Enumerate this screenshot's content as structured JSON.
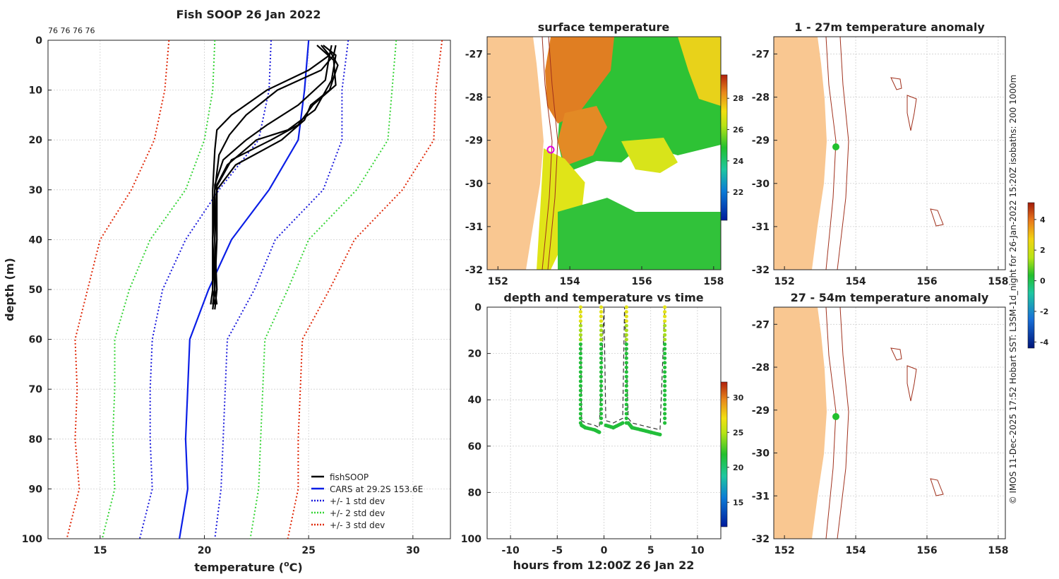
{
  "colors": {
    "land": "#f9c791",
    "fishsoop": "#000000",
    "cars": "#0a1ee6",
    "std1": "#1a1adc",
    "std2": "#35d435",
    "std3": "#e02a0a",
    "isobath": "#a0301c"
  },
  "profile": {
    "title": "Fish SOOP 26 Jan 2022",
    "top_note": "76 76 76 76",
    "xlabel": "temperature (",
    "xlabel_unit": "o",
    "xlabel_end": "C)",
    "ylabel": "depth (m)",
    "x_ticks": [
      "15",
      "20",
      "25",
      "30"
    ],
    "y_ticks": [
      "0",
      "10",
      "20",
      "30",
      "40",
      "50",
      "60",
      "70",
      "80",
      "90",
      "100"
    ],
    "legend": [
      "fishSOOP",
      "CARS at 29.2S 153.6E",
      "+/- 1 std dev",
      "+/- 2 std dev",
      "+/- 3 std dev"
    ]
  },
  "sst_map": {
    "title": "surface temperature",
    "colorbar_ticks": [
      "22",
      "24",
      "26",
      "28"
    ]
  },
  "anom1": {
    "title": "1 - 27m temperature anomaly"
  },
  "anom2": {
    "title": "27 - 54m temperature anomaly"
  },
  "anom_colorbar_ticks": [
    "-4",
    "-2",
    "0",
    "2",
    "4"
  ],
  "map_x_ticks": [
    "152",
    "154",
    "156",
    "158"
  ],
  "map_y_ticks": [
    "-27",
    "-28",
    "-29",
    "-30",
    "-31",
    "-32"
  ],
  "timeplot": {
    "title": "depth and temperature vs time",
    "xlabel": "hours from 12:00Z 26 Jan 22",
    "x_ticks": [
      "-10",
      "-5",
      "0",
      "5",
      "10"
    ],
    "y_ticks": [
      "0",
      "20",
      "40",
      "60",
      "80",
      "100"
    ],
    "colorbar_ticks": [
      "15",
      "20",
      "25",
      "30"
    ]
  },
  "credit": "© IMOS 11-Dec-2025 17:52 Hobart SST: L3SM-1d_night for 26-Jan-2022 15:20Z isobaths: 200  1000m",
  "chart_data": {
    "type": "line",
    "title": "Fish SOOP 26 Jan 2022",
    "xlabel": "temperature (oC)",
    "ylabel": "depth (m)",
    "xlim": [
      12.5,
      31.8
    ],
    "ylim": [
      100,
      0
    ],
    "depths": [
      0,
      10,
      20,
      30,
      40,
      50,
      60,
      70,
      80,
      90,
      100
    ],
    "series": [
      {
        "name": "CARS at 29.2S 153.6E",
        "values": [
          25.0,
          24.8,
          24.5,
          23.1,
          21.3,
          20.2,
          19.3,
          19.2,
          19.1,
          19.2,
          18.8
        ]
      },
      {
        "name": "+/- 1 std dev (low)",
        "values": [
          23.2,
          23.1,
          22.6,
          20.7,
          19.1,
          18.0,
          17.5,
          17.4,
          17.4,
          17.5,
          16.9
        ]
      },
      {
        "name": "+/- 1 std dev (high)",
        "values": [
          26.9,
          26.6,
          26.6,
          25.7,
          23.4,
          22.4,
          21.1,
          21.0,
          20.9,
          20.8,
          20.5
        ]
      },
      {
        "name": "+/- 2 std dev (low)",
        "values": [
          20.5,
          20.4,
          20.0,
          19.1,
          17.4,
          16.4,
          15.7,
          15.7,
          15.6,
          15.7,
          15.1
        ]
      },
      {
        "name": "+/- 2 std dev (high)",
        "values": [
          29.2,
          29.0,
          28.8,
          27.3,
          25.0,
          24.0,
          22.9,
          22.8,
          22.7,
          22.6,
          22.2
        ]
      },
      {
        "name": "+/- 3 std dev (low)",
        "values": [
          18.3,
          18.1,
          17.6,
          16.5,
          15.0,
          14.4,
          13.8,
          13.9,
          13.8,
          14.0,
          13.4
        ]
      },
      {
        "name": "+/- 3 std dev (high)",
        "values": [
          31.4,
          31.1,
          31.0,
          29.5,
          27.2,
          26.0,
          24.7,
          24.6,
          24.5,
          24.5,
          24.0
        ]
      }
    ],
    "fishsoop_profiles": [
      {
        "depths": [
          1,
          3,
          6,
          10,
          15,
          18,
          22,
          30,
          40,
          50,
          53
        ],
        "temps": [
          26.1,
          26.0,
          25.0,
          23.0,
          21.3,
          20.6,
          20.5,
          20.4,
          20.4,
          20.4,
          20.3
        ]
      },
      {
        "depths": [
          1,
          3,
          6,
          10,
          15,
          19,
          23,
          30,
          40,
          50,
          53
        ],
        "temps": [
          26.3,
          26.2,
          25.6,
          23.5,
          22.0,
          21.2,
          20.7,
          20.5,
          20.4,
          20.4,
          20.5
        ]
      },
      {
        "depths": [
          1,
          3,
          8,
          13,
          17,
          20,
          24,
          29,
          40,
          50,
          54
        ],
        "temps": [
          25.6,
          26.0,
          25.8,
          24.5,
          23.0,
          22.0,
          20.9,
          20.5,
          20.5,
          20.5,
          20.4
        ]
      },
      {
        "depths": [
          1,
          3,
          8,
          14,
          18,
          20,
          25,
          29,
          40,
          50,
          53
        ],
        "temps": [
          25.7,
          26.3,
          26.1,
          25.3,
          24.0,
          22.5,
          21.1,
          20.6,
          20.6,
          20.5,
          20.6
        ]
      },
      {
        "depths": [
          1,
          4,
          9,
          13,
          17,
          20,
          24,
          30,
          40,
          50,
          53
        ],
        "temps": [
          25.4,
          26.2,
          26.3,
          25.2,
          24.5,
          23.2,
          21.3,
          20.5,
          20.4,
          20.5,
          20.4
        ]
      },
      {
        "depths": [
          2,
          5,
          10,
          13,
          16,
          20,
          25,
          30,
          40,
          50,
          54
        ],
        "temps": [
          26.0,
          26.4,
          26.0,
          25.1,
          24.8,
          23.7,
          21.5,
          20.6,
          20.5,
          20.6,
          20.5
        ]
      }
    ],
    "time_series": {
      "xlim": [
        -12.5,
        12.5
      ],
      "ylim": [
        100,
        0
      ],
      "hours": [
        -2.5,
        -2.4,
        -2.0,
        -1.0,
        -0.5,
        0.0,
        0.2,
        1.0,
        2.0,
        2.2,
        2.6,
        3.0,
        4.0,
        5.0,
        6.0,
        6.5
      ],
      "depths": [
        0,
        49,
        50,
        51,
        52,
        0,
        49,
        50,
        48,
        0,
        48,
        50,
        51,
        52,
        53,
        0
      ]
    }
  }
}
